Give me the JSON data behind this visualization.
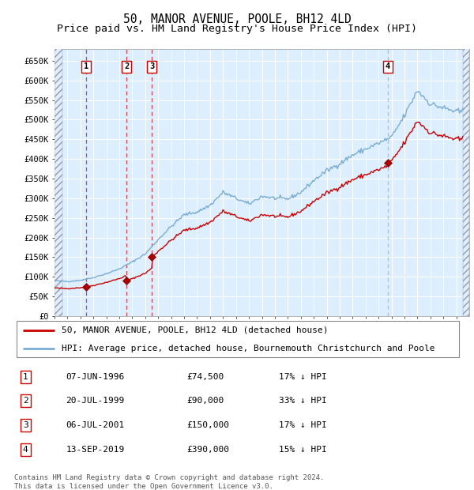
{
  "title": "50, MANOR AVENUE, POOLE, BH12 4LD",
  "subtitle": "Price paid vs. HM Land Registry's House Price Index (HPI)",
  "ylim": [
    0,
    680000
  ],
  "yticks": [
    0,
    50000,
    100000,
    150000,
    200000,
    250000,
    300000,
    350000,
    400000,
    450000,
    500000,
    550000,
    600000,
    650000
  ],
  "ytick_labels": [
    "£0",
    "£50K",
    "£100K",
    "£150K",
    "£200K",
    "£250K",
    "£300K",
    "£350K",
    "£400K",
    "£450K",
    "£500K",
    "£550K",
    "£600K",
    "£650K"
  ],
  "xlim_start": 1994.0,
  "xlim_end": 2026.0,
  "sale_dates": [
    1996.44,
    1999.55,
    2001.51,
    2019.71
  ],
  "sale_prices": [
    74500,
    90000,
    150000,
    390000
  ],
  "sale_labels": [
    "1",
    "2",
    "3",
    "4"
  ],
  "hpi_line_color": "#7aadd4",
  "sale_line_color": "#cc0000",
  "sale_marker_color": "#aa0000",
  "dashed_line_color_red": "#cc0000",
  "dashed_line_color_blue": "#8888aa",
  "bg_color": "#ddeeff",
  "legend_entries": [
    "50, MANOR AVENUE, POOLE, BH12 4LD (detached house)",
    "HPI: Average price, detached house, Bournemouth Christchurch and Poole"
  ],
  "table_rows": [
    [
      "1",
      "07-JUN-1996",
      "£74,500",
      "17% ↓ HPI"
    ],
    [
      "2",
      "20-JUL-1999",
      "£90,000",
      "33% ↓ HPI"
    ],
    [
      "3",
      "06-JUL-2001",
      "£150,000",
      "17% ↓ HPI"
    ],
    [
      "4",
      "13-SEP-2019",
      "£390,000",
      "15% ↓ HPI"
    ]
  ],
  "footer": "Contains HM Land Registry data © Crown copyright and database right 2024.\nThis data is licensed under the Open Government Licence v3.0.",
  "title_fontsize": 10.5,
  "subtitle_fontsize": 9.5,
  "tick_fontsize": 7.5,
  "legend_fontsize": 8,
  "table_fontsize": 8,
  "footer_fontsize": 6.5
}
